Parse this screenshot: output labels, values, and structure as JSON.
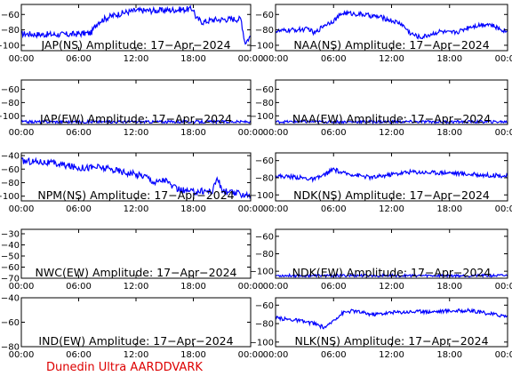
{
  "footer": "Dunedin Ultra AARDDVARK",
  "chart_data": [
    {
      "type": "line",
      "title": "JAP(NS) Amplitude: 17−Apr−2024",
      "xticks": [
        "00:00",
        "06:00",
        "12:00",
        "18:00",
        "00:00"
      ],
      "xlim": [
        0,
        24
      ],
      "yticks": [
        "−60",
        "−80",
        "−100"
      ],
      "ytick_values": [
        -60,
        -80,
        -100
      ],
      "ylim": [
        -107,
        -47
      ],
      "series": [
        {
          "x": [
            0,
            2,
            5,
            7.3,
            8,
            9,
            10,
            11,
            12,
            14,
            16,
            18,
            18.3,
            19,
            20,
            22,
            23,
            23.4,
            24
          ],
          "y": [
            -85,
            -86,
            -86,
            -84,
            -70,
            -64,
            -60,
            -57,
            -55,
            -55,
            -54,
            -53,
            -65,
            -70,
            -67,
            -66,
            -66,
            -97,
            -88
          ],
          "noise": 4
        }
      ]
    },
    {
      "type": "line",
      "title": "NAA(NS) Amplitude: 17−Apr−2024",
      "xticks": [
        "00:00",
        "06:00",
        "12:00",
        "18:00",
        "00:00"
      ],
      "xlim": [
        0,
        24
      ],
      "yticks": [
        "−60",
        "−80",
        "−100"
      ],
      "ytick_values": [
        -60,
        -80,
        -100
      ],
      "ylim": [
        -107,
        -47
      ],
      "series": [
        {
          "x": [
            0,
            2,
            3.5,
            4,
            5,
            6,
            7,
            9,
            11,
            13,
            14,
            15,
            16,
            17,
            18,
            19,
            20,
            21,
            22,
            23,
            24
          ],
          "y": [
            -82,
            -80,
            -79,
            -85,
            -74,
            -68,
            -58,
            -60,
            -64,
            -72,
            -85,
            -90,
            -86,
            -82,
            -84,
            -82,
            -76,
            -74,
            -72,
            -78,
            -82
          ],
          "noise": 3
        }
      ]
    },
    {
      "type": "line",
      "title": "JAP(EW) Amplitude: 17−Apr−2024",
      "xticks": [
        "00:00",
        "06:00",
        "12:00",
        "18:00",
        "00:00"
      ],
      "xlim": [
        0,
        24
      ],
      "yticks": [
        "−60",
        "−80",
        "−100"
      ],
      "ytick_values": [
        -60,
        -80,
        -100
      ],
      "ylim": [
        -113,
        -46
      ],
      "series": [
        {
          "x": [
            0,
            24
          ],
          "y": [
            -109,
            -109
          ],
          "noise": 2
        }
      ]
    },
    {
      "type": "line",
      "title": "NAA(EW) Amplitude: 17−Apr−2024",
      "xticks": [
        "00:00",
        "06:00",
        "12:00",
        "18:00",
        "00:00"
      ],
      "xlim": [
        0,
        24
      ],
      "yticks": [
        "−60",
        "−80",
        "−100"
      ],
      "ytick_values": [
        -60,
        -80,
        -100
      ],
      "ylim": [
        -113,
        -46
      ],
      "series": [
        {
          "x": [
            0,
            24
          ],
          "y": [
            -109,
            -109
          ],
          "noise": 2
        }
      ]
    },
    {
      "type": "line",
      "title": "NPM(NS) Amplitude: 17−Apr−2024",
      "xticks": [
        "00:00",
        "06:00",
        "12:00",
        "18:00",
        "00:00"
      ],
      "xlim": [
        0,
        24
      ],
      "yticks": [
        "−40",
        "−60",
        "−80",
        "−100"
      ],
      "ytick_values": [
        -40,
        -60,
        -80,
        -100
      ],
      "ylim": [
        -107,
        -36
      ],
      "series": [
        {
          "x": [
            0,
            2,
            4,
            6,
            8,
            10,
            12,
            13,
            14,
            15,
            16,
            17,
            18,
            19,
            20,
            20.5,
            21,
            22,
            23,
            24
          ],
          "y": [
            -48,
            -49,
            -53,
            -58,
            -57,
            -62,
            -68,
            -70,
            -80,
            -75,
            -88,
            -92,
            -94,
            -92,
            -93,
            -72,
            -92,
            -95,
            -97,
            -98
          ],
          "noise": 5
        }
      ]
    },
    {
      "type": "line",
      "title": "NDK(NS) Amplitude: 17−Apr−2024",
      "xticks": [
        "00:00",
        "06:00",
        "12:00",
        "18:00",
        "00:00"
      ],
      "xlim": [
        0,
        24
      ],
      "yticks": [
        "−60",
        "−80",
        "−100"
      ],
      "ytick_values": [
        -60,
        -80,
        -100
      ],
      "ylim": [
        -107,
        -51
      ],
      "series": [
        {
          "x": [
            0,
            2,
            4,
            5,
            6,
            7,
            8,
            10,
            12,
            14,
            16,
            18,
            20,
            22,
            24
          ],
          "y": [
            -78,
            -79,
            -82,
            -77,
            -70,
            -75,
            -76,
            -80,
            -76,
            -73,
            -74,
            -74,
            -76,
            -77,
            -78
          ],
          "noise": 2.5
        }
      ]
    },
    {
      "type": "line",
      "title": "NWC(EW) Amplitude: 17−Apr−2024",
      "xticks": [
        "00:00",
        "06:00",
        "12:00",
        "18:00",
        "00:00"
      ],
      "xlim": [
        0,
        24
      ],
      "yticks": [
        "−30",
        "−40",
        "−50",
        "−60",
        "−70"
      ],
      "ytick_values": [
        -30,
        -40,
        -50,
        -60,
        -70
      ],
      "ylim": [
        -70,
        -26
      ],
      "series": []
    },
    {
      "type": "line",
      "title": "NDK(EW) Amplitude: 17−Apr−2024",
      "xticks": [
        "00:00",
        "06:00",
        "12:00",
        "18:00",
        "00:00"
      ],
      "xlim": [
        0,
        24
      ],
      "yticks": [
        "−60",
        "−80",
        "−100"
      ],
      "ytick_values": [
        -60,
        -80,
        -100
      ],
      "ylim": [
        -108,
        -52
      ],
      "series": [
        {
          "x": [
            0,
            24
          ],
          "y": [
            -105,
            -105
          ],
          "noise": 1.5
        }
      ]
    },
    {
      "type": "line",
      "title": "IND(EW) Amplitude: 17−Apr−2024",
      "xticks": [
        "00:00",
        "06:00",
        "12:00",
        "18:00",
        "00:00"
      ],
      "xlim": [
        0,
        24
      ],
      "yticks": [
        "−40",
        "−60",
        "−80"
      ],
      "ytick_values": [
        -40,
        -60,
        -80
      ],
      "ylim": [
        -80,
        -40
      ],
      "series": []
    },
    {
      "type": "line",
      "title": "NLK(NS) Amplitude: 17−Apr−2024",
      "xticks": [
        "00:00",
        "06:00",
        "12:00",
        "18:00",
        "00:00"
      ],
      "xlim": [
        0,
        24
      ],
      "yticks": [
        "−60",
        "−80",
        "−100"
      ],
      "ytick_values": [
        -60,
        -80,
        -100
      ],
      "ylim": [
        -105,
        -52
      ],
      "series": [
        {
          "x": [
            0,
            1,
            2,
            3,
            4,
            5,
            5.5,
            6,
            7,
            8,
            9,
            10,
            12,
            14,
            16,
            18,
            20,
            22,
            24
          ],
          "y": [
            -74,
            -75,
            -76,
            -78,
            -80,
            -84,
            -82,
            -76,
            -68,
            -66,
            -68,
            -70,
            -68,
            -67,
            -67,
            -66,
            -66,
            -69,
            -72
          ],
          "noise": 2
        }
      ]
    }
  ]
}
